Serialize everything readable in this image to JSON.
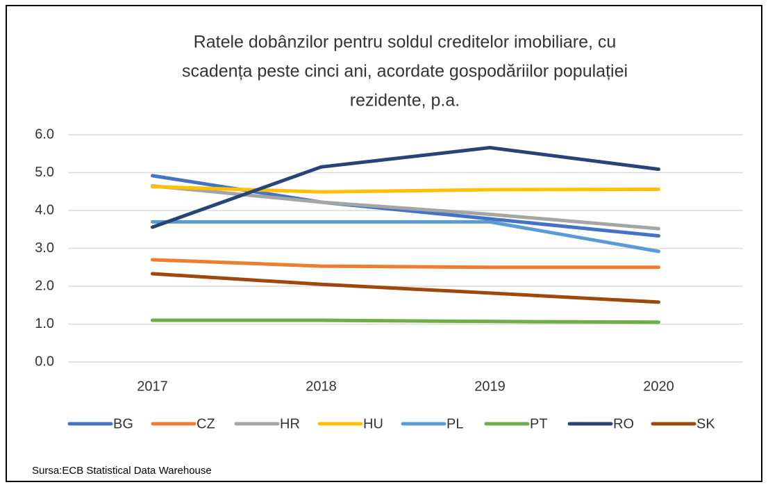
{
  "chart_data": {
    "type": "line",
    "title": [
      "Ratele dobânzilor pentru soldul creditelor imobiliare, cu",
      "scadența peste cinci ani, acordate gospodăriilor populației",
      "rezidente, p.a."
    ],
    "categories": [
      "2017",
      "2018",
      "2019",
      "2020"
    ],
    "series": [
      {
        "name": "BG",
        "color": "#4472c4",
        "values": [
          4.92,
          4.22,
          3.78,
          3.33
        ]
      },
      {
        "name": "CZ",
        "color": "#ed7d31",
        "values": [
          2.7,
          2.53,
          2.5,
          2.5
        ]
      },
      {
        "name": "HR",
        "color": "#a5a5a5",
        "values": [
          4.65,
          4.22,
          3.9,
          3.52
        ]
      },
      {
        "name": "HU",
        "color": "#ffc000",
        "values": [
          4.63,
          4.49,
          4.55,
          4.56
        ]
      },
      {
        "name": "PL",
        "color": "#5b9bd5",
        "values": [
          3.7,
          3.7,
          3.7,
          2.92
        ]
      },
      {
        "name": "PT",
        "color": "#70ad47",
        "values": [
          1.1,
          1.1,
          1.07,
          1.05
        ]
      },
      {
        "name": "RO",
        "color": "#264478",
        "values": [
          3.56,
          5.15,
          5.66,
          5.09
        ]
      },
      {
        "name": "SK",
        "color": "#9e480e",
        "values": [
          2.33,
          2.05,
          1.82,
          1.58
        ]
      }
    ],
    "ylim": [
      0,
      6
    ],
    "yticks": [
      {
        "value": 0,
        "label": "0.0"
      },
      {
        "value": 1,
        "label": "1.0"
      },
      {
        "value": 2,
        "label": "2.0"
      },
      {
        "value": 3,
        "label": "3.0"
      },
      {
        "value": 4,
        "label": "4.0"
      },
      {
        "value": 5,
        "label": "5.0"
      },
      {
        "value": 6,
        "label": "6.0"
      }
    ],
    "grid": true,
    "legend": "bottom",
    "source": "Sursa:ECB Statistical Data Warehouse"
  }
}
